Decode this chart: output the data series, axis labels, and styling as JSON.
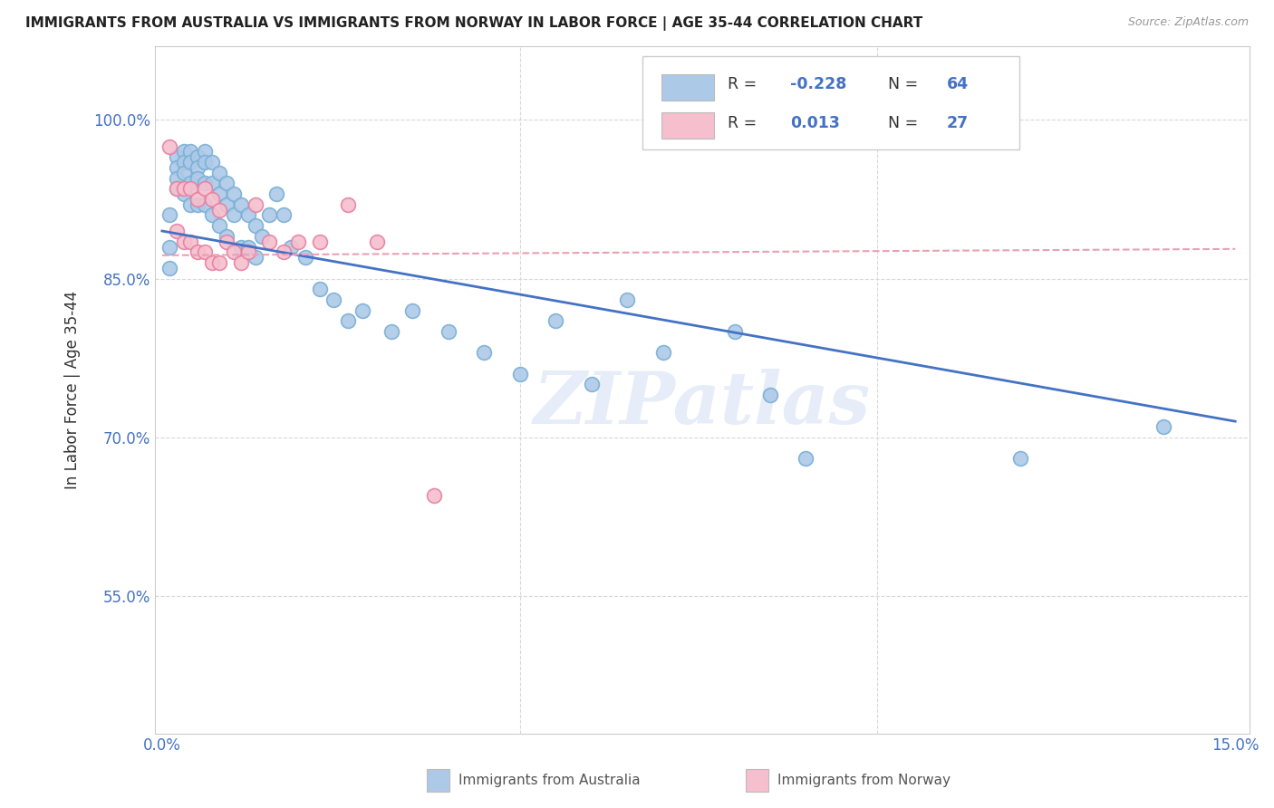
{
  "title": "IMMIGRANTS FROM AUSTRALIA VS IMMIGRANTS FROM NORWAY IN LABOR FORCE | AGE 35-44 CORRELATION CHART",
  "source": "Source: ZipAtlas.com",
  "ylabel": "In Labor Force | Age 35-44",
  "watermark": "ZIPatlas",
  "xlim": [
    -0.001,
    0.152
  ],
  "ylim": [
    0.42,
    1.07
  ],
  "xticks": [
    0.0,
    0.05,
    0.1,
    0.15
  ],
  "xticklabels": [
    "0.0%",
    "",
    "",
    "15.0%"
  ],
  "yticks": [
    0.55,
    0.7,
    0.85,
    1.0
  ],
  "yticklabels": [
    "55.0%",
    "70.0%",
    "85.0%",
    "100.0%"
  ],
  "australia_color": "#adc9e8",
  "australia_edge": "#7aafd4",
  "norway_color": "#f5bfce",
  "norway_edge": "#e87fa0",
  "line_australia": "#4472c4",
  "line_norway": "#e8a0b4",
  "R_australia": -0.228,
  "N_australia": 64,
  "R_norway": 0.013,
  "N_norway": 27,
  "aus_line_x0": 0.0,
  "aus_line_y0": 0.895,
  "aus_line_x1": 0.15,
  "aus_line_y1": 0.715,
  "nor_line_x0": 0.0,
  "nor_line_y0": 0.872,
  "nor_line_x1": 0.15,
  "nor_line_y1": 0.878,
  "australia_x": [
    0.001,
    0.001,
    0.001,
    0.002,
    0.002,
    0.002,
    0.002,
    0.003,
    0.003,
    0.003,
    0.003,
    0.004,
    0.004,
    0.004,
    0.004,
    0.005,
    0.005,
    0.005,
    0.005,
    0.006,
    0.006,
    0.006,
    0.006,
    0.007,
    0.007,
    0.007,
    0.008,
    0.008,
    0.008,
    0.009,
    0.009,
    0.009,
    0.01,
    0.01,
    0.011,
    0.011,
    0.012,
    0.012,
    0.013,
    0.013,
    0.014,
    0.015,
    0.016,
    0.017,
    0.018,
    0.02,
    0.022,
    0.024,
    0.026,
    0.028,
    0.032,
    0.035,
    0.04,
    0.045,
    0.05,
    0.055,
    0.06,
    0.065,
    0.07,
    0.08,
    0.085,
    0.09,
    0.12,
    0.14
  ],
  "australia_y": [
    0.91,
    0.88,
    0.86,
    0.965,
    0.955,
    0.945,
    0.935,
    0.97,
    0.96,
    0.95,
    0.93,
    0.97,
    0.96,
    0.94,
    0.92,
    0.965,
    0.955,
    0.945,
    0.92,
    0.97,
    0.96,
    0.94,
    0.92,
    0.96,
    0.94,
    0.91,
    0.95,
    0.93,
    0.9,
    0.94,
    0.92,
    0.89,
    0.93,
    0.91,
    0.92,
    0.88,
    0.91,
    0.88,
    0.9,
    0.87,
    0.89,
    0.91,
    0.93,
    0.91,
    0.88,
    0.87,
    0.84,
    0.83,
    0.81,
    0.82,
    0.8,
    0.82,
    0.8,
    0.78,
    0.76,
    0.81,
    0.75,
    0.83,
    0.78,
    0.8,
    0.74,
    0.68,
    0.68,
    0.71
  ],
  "norway_x": [
    0.001,
    0.002,
    0.002,
    0.003,
    0.003,
    0.004,
    0.004,
    0.005,
    0.005,
    0.006,
    0.006,
    0.007,
    0.007,
    0.008,
    0.008,
    0.009,
    0.01,
    0.011,
    0.012,
    0.013,
    0.015,
    0.017,
    0.019,
    0.022,
    0.026,
    0.03,
    0.038
  ],
  "norway_y": [
    0.975,
    0.935,
    0.895,
    0.935,
    0.885,
    0.935,
    0.885,
    0.925,
    0.875,
    0.935,
    0.875,
    0.925,
    0.865,
    0.915,
    0.865,
    0.885,
    0.875,
    0.865,
    0.875,
    0.92,
    0.885,
    0.875,
    0.885,
    0.885,
    0.92,
    0.885,
    0.645
  ],
  "background_color": "#ffffff",
  "grid_color": "#d8d8d8"
}
